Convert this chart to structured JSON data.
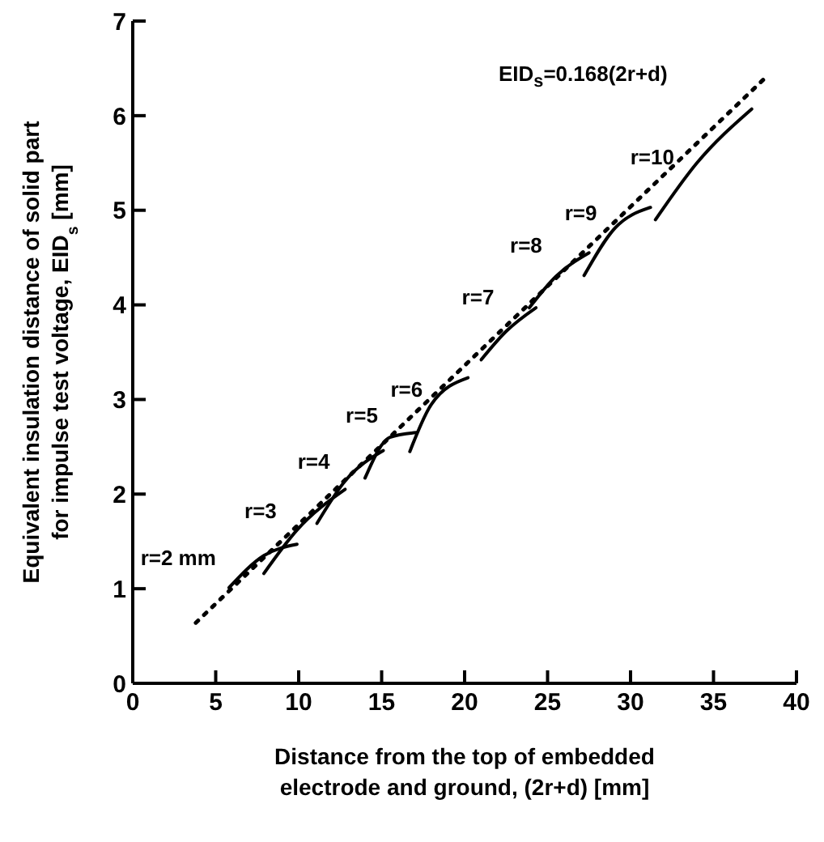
{
  "chart_data": {
    "type": "line",
    "xlabel": "Distance from the top of embedded\nelectrode and ground, (2r+d) [mm]",
    "ylabel": "Equivalent insulation distance of solid part\nfor impulse test voltage, EID$_{s}$ [mm]",
    "xlim": [
      0,
      40
    ],
    "xticks": [
      0,
      5,
      10,
      15,
      20,
      25,
      30,
      35,
      40
    ],
    "ylim": [
      0,
      7
    ],
    "yticks": [
      0,
      1,
      2,
      3,
      4,
      5,
      6,
      7
    ],
    "grid": false,
    "legend": false,
    "marker": "none",
    "line_style": "solid",
    "annotations": [
      "EID$_{s}$=0.168(2r+d)"
    ],
    "series": [
      {
        "name": "r=2 mm",
        "color": "#000000",
        "x": [
          5.8,
          7.9,
          9.9
        ],
        "values": [
          1.01,
          1.35,
          1.47
        ]
      },
      {
        "name": "r=3",
        "color": "#000000",
        "x": [
          7.9,
          9.9,
          12.8
        ],
        "values": [
          1.16,
          1.62,
          2.05
        ]
      },
      {
        "name": "r=4",
        "color": "#000000",
        "x": [
          11.1,
          12.8,
          15.1
        ],
        "values": [
          1.69,
          2.14,
          2.46
        ]
      },
      {
        "name": "r=5",
        "color": "#000000",
        "x": [
          14.0,
          15.5,
          17.1
        ],
        "values": [
          2.17,
          2.6,
          2.65
        ]
      },
      {
        "name": "r=6",
        "color": "#000000",
        "x": [
          16.7,
          18.0,
          20.2
        ],
        "values": [
          2.45,
          2.95,
          3.23
        ]
      },
      {
        "name": "r=7",
        "color": "#000000",
        "x": [
          21.0,
          22.5,
          24.3
        ],
        "values": [
          3.42,
          3.72,
          3.97
        ]
      },
      {
        "name": "r=8",
        "color": "#000000",
        "x": [
          23.9,
          25.5,
          27.5
        ],
        "values": [
          3.97,
          4.3,
          4.55
        ]
      },
      {
        "name": "r=9",
        "color": "#000000",
        "x": [
          27.2,
          29.0,
          31.2
        ],
        "values": [
          4.31,
          4.8,
          5.03
        ]
      },
      {
        "name": "r=10",
        "color": "#000000",
        "x": [
          31.5,
          34.0,
          37.3
        ],
        "values": [
          4.9,
          5.5,
          6.07
        ]
      },
      {
        "type": "line",
        "color": "#000000",
        "line_style": "dotted",
        "x": [
          3.8,
          38.0
        ],
        "values": [
          0.64,
          6.38
        ]
      }
    ]
  }
}
